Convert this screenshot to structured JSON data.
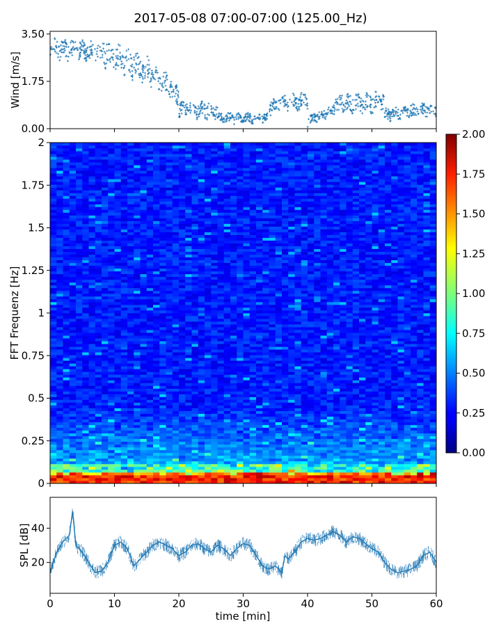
{
  "title": "2017-05-08 07:00-07:00 (125.00_Hz)",
  "colors": {
    "wind_points": "#1f77b4",
    "spl_line": "#1f77b4",
    "axes": "#000000",
    "colormap": "jet"
  },
  "chart_data": [
    {
      "id": "wind",
      "type": "scatter",
      "title": "",
      "xlabel": "",
      "ylabel": "Wind [m/s]",
      "xlim": [
        0,
        60
      ],
      "ylim": [
        0,
        3.6
      ],
      "yticks": [
        "0.00",
        "1.75",
        "3.50"
      ],
      "marker": "+",
      "segments": [
        {
          "t": [
            0,
            8
          ],
          "level": [
            2.8,
            2.6
          ],
          "spread": 0.6
        },
        {
          "t": [
            8,
            16
          ],
          "level": [
            2.6,
            1.8
          ],
          "spread": 0.8
        },
        {
          "t": [
            16,
            20
          ],
          "level": [
            1.8,
            1.0
          ],
          "spread": 0.7
        },
        {
          "t": [
            20,
            26
          ],
          "level": [
            0.6,
            0.5
          ],
          "spread": 0.5
        },
        {
          "t": [
            26,
            34
          ],
          "level": [
            0.3,
            0.3
          ],
          "spread": 0.3
        },
        {
          "t": [
            34,
            40
          ],
          "level": [
            0.7,
            0.9
          ],
          "spread": 0.5
        },
        {
          "t": [
            40,
            44
          ],
          "level": [
            0.2,
            0.6
          ],
          "spread": 0.3
        },
        {
          "t": [
            44,
            52
          ],
          "level": [
            0.7,
            0.8
          ],
          "spread": 0.6
        },
        {
          "t": [
            52,
            60
          ],
          "level": [
            0.4,
            0.6
          ],
          "spread": 0.4
        }
      ]
    },
    {
      "id": "spectrogram",
      "type": "heatmap",
      "title": "",
      "xlabel": "",
      "ylabel": "FFT Frequenz [Hz]",
      "xlim": [
        0,
        60
      ],
      "ylim": [
        0,
        2
      ],
      "yticks": [
        "0",
        "0.25",
        "0.5",
        "0.75",
        "1",
        "1.25",
        "1.5",
        "1.75",
        "2"
      ],
      "colormap": "jet",
      "colorbar": {
        "range": [
          0,
          2
        ],
        "ticks": [
          "0.00",
          "0.25",
          "0.50",
          "0.75",
          "1.00",
          "1.25",
          "1.50",
          "1.75",
          "2.00"
        ]
      },
      "background_level": 0.3,
      "low_frequency_band_hz": [
        0,
        0.05
      ],
      "low_frequency_level": 1.9
    },
    {
      "id": "spl",
      "type": "line",
      "title": "",
      "xlabel": "time [min]",
      "ylabel": "SPL [dB]",
      "xlim": [
        0,
        60
      ],
      "ylim": [
        2,
        58
      ],
      "xticks": [
        "0",
        "10",
        "20",
        "30",
        "40",
        "50",
        "60"
      ],
      "yticks": [
        "20",
        "40"
      ],
      "x": [
        0,
        1,
        2,
        3,
        3.5,
        4,
        5,
        6,
        7,
        8,
        9,
        10,
        11,
        12,
        13,
        14,
        15,
        16,
        17,
        18,
        19,
        20,
        21,
        22,
        23,
        24,
        25,
        26,
        27,
        28,
        29,
        30,
        31,
        32,
        33,
        34,
        35,
        36,
        36.5,
        37,
        38,
        39,
        40,
        41,
        42,
        43,
        44,
        45,
        46,
        47,
        48,
        49,
        50,
        51,
        52,
        53,
        54,
        55,
        56,
        57,
        58,
        59,
        60
      ],
      "y": [
        14,
        26,
        32,
        36,
        50,
        30,
        26,
        20,
        14,
        15,
        20,
        30,
        32,
        28,
        18,
        22,
        26,
        30,
        32,
        30,
        28,
        24,
        26,
        30,
        31,
        28,
        26,
        30,
        28,
        24,
        28,
        31,
        30,
        24,
        18,
        16,
        18,
        14,
        24,
        22,
        26,
        32,
        34,
        33,
        34,
        36,
        38,
        36,
        32,
        35,
        34,
        31,
        28,
        26,
        20,
        16,
        14,
        15,
        16,
        18,
        24,
        26,
        20
      ]
    }
  ]
}
